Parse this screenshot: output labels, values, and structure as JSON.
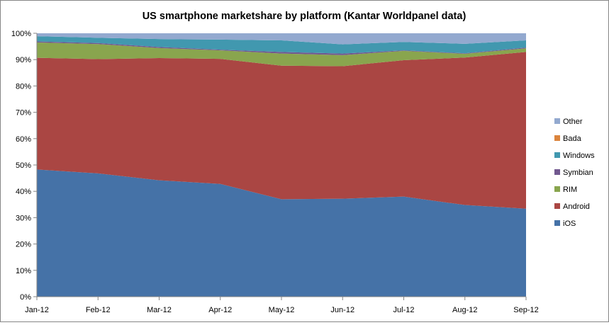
{
  "chart_data": {
    "type": "area",
    "stacked": true,
    "title": "US smartphone marketshare by platform (Kantar Worldpanel data)",
    "categories": [
      "Jan-12",
      "Feb-12",
      "Mar-12",
      "Apr-12",
      "May-12",
      "Jun-12",
      "Jul-12",
      "Aug-12",
      "Sep-12"
    ],
    "ylim": [
      0,
      100
    ],
    "y_ticks": [
      "0%",
      "10%",
      "20%",
      "30%",
      "40%",
      "50%",
      "60%",
      "70%",
      "80%",
      "90%",
      "100%"
    ],
    "legend_position": "right",
    "grid": false,
    "series": [
      {
        "name": "iOS",
        "color": "#4572A7",
        "values": [
          48.3,
          46.8,
          44.2,
          42.8,
          37.0,
          37.2,
          38.0,
          34.8,
          33.4
        ]
      },
      {
        "name": "Android",
        "color": "#AA4643",
        "values": [
          42.4,
          43.4,
          46.4,
          47.5,
          50.7,
          50.3,
          51.8,
          56.0,
          59.5
        ]
      },
      {
        "name": "RIM",
        "color": "#89A54E",
        "values": [
          5.8,
          5.7,
          3.8,
          3.2,
          4.6,
          4.2,
          3.5,
          1.4,
          1.4
        ]
      },
      {
        "name": "Symbian",
        "color": "#71588F",
        "values": [
          0.4,
          0.4,
          0.4,
          0.3,
          0.6,
          0.6,
          0.2,
          0.2,
          0.3
        ]
      },
      {
        "name": "Windows",
        "color": "#4198AF",
        "values": [
          2.0,
          2.0,
          3.0,
          3.8,
          4.4,
          3.5,
          3.2,
          3.6,
          2.7
        ]
      },
      {
        "name": "Bada",
        "color": "#DB843D",
        "values": [
          0.0,
          0.0,
          0.0,
          0.0,
          0.0,
          0.0,
          0.0,
          0.0,
          0.0
        ]
      },
      {
        "name": "Other",
        "color": "#93A9CF",
        "values": [
          1.1,
          1.7,
          2.2,
          2.4,
          2.7,
          4.2,
          3.3,
          4.0,
          2.7
        ]
      }
    ]
  }
}
